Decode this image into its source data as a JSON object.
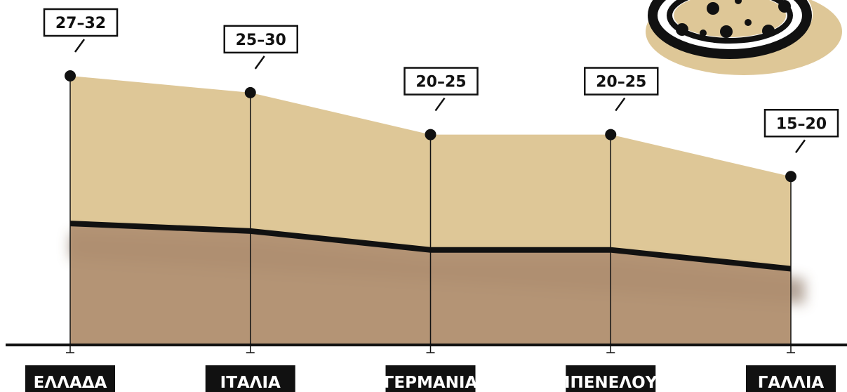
{
  "chart_data": {
    "type": "area",
    "categories": [
      "ΕΛΛΑΔΑ",
      "ΙΤΑΛΙΑ",
      "ΓΕΡΜΑΝΙΑ",
      "ΜΠΕΝΕΛΟΥΞ",
      "ΓΑΛΛΙΑ"
    ],
    "low": [
      27,
      25,
      20,
      20,
      15
    ],
    "high": [
      32,
      30,
      25,
      25,
      20
    ],
    "value_labels": [
      "27–32",
      "25–30",
      "20–25",
      "20–25",
      "15–20"
    ],
    "color": "#dec797"
  }
}
